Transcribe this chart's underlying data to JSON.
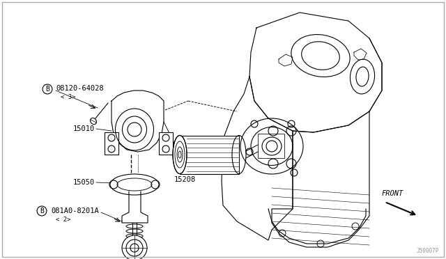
{
  "background_color": "#ffffff",
  "line_color": "#000000",
  "diagram_id": "J50007P",
  "front_label": "FRONT",
  "label_08120": "08120-64028",
  "label_08120_qty": "< 3>",
  "label_15010": "15010",
  "label_15050": "15050",
  "label_081A0": "081A0-8201A",
  "label_081A0_qty": "< 2>",
  "label_15208": "15208"
}
